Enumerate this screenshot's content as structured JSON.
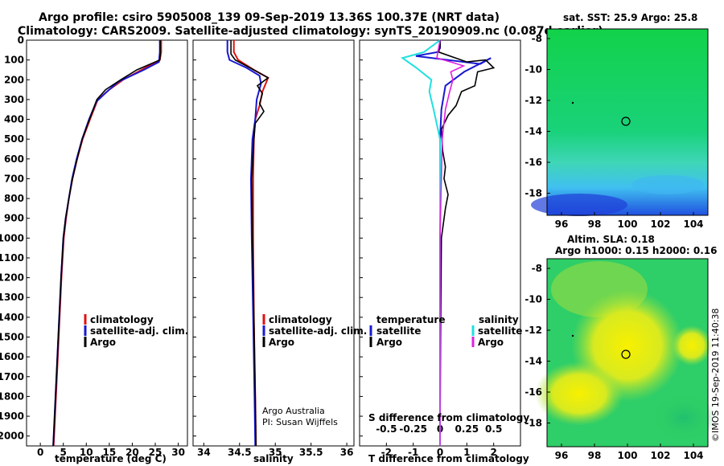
{
  "header": {
    "line1": "Argo profile: csiro 5905008_139 09-Sep-2019 13.36S 100.37E (NRT data)",
    "line2": "Climatology: CARS2009. Satellite-adjusted climatology: synTS_20190909.nc (0.087d earlier)"
  },
  "colors": {
    "climatology": "#e01010",
    "satellite": "#1818d0",
    "argo": "#000000",
    "sat_salinity": "#20e0e0",
    "argo_salinity": "#e020e0"
  },
  "chart_data": [
    {
      "type": "line",
      "name": "temperature",
      "xlabel": "temperature (deg C)",
      "xlim": [
        -3,
        32
      ],
      "ylim": [
        0,
        2050
      ],
      "xticks": [
        "0",
        "5",
        "10",
        "15",
        "20",
        "25",
        "30"
      ],
      "yticks": [
        "0",
        "100",
        "200",
        "300",
        "400",
        "500",
        "600",
        "700",
        "800",
        "900",
        "1000",
        "1100",
        "1200",
        "1300",
        "1400",
        "1500",
        "1600",
        "1700",
        "1800",
        "1900",
        "2000"
      ],
      "series": [
        {
          "name": "climatology",
          "color": "#e01010",
          "points": [
            [
              26.3,
              0
            ],
            [
              26.3,
              60
            ],
            [
              26.0,
              100
            ],
            [
              22,
              150
            ],
            [
              18,
              200
            ],
            [
              15,
              250
            ],
            [
              12.5,
              300
            ],
            [
              10.8,
              400
            ],
            [
              9.2,
              500
            ],
            [
              8.0,
              600
            ],
            [
              7.0,
              700
            ],
            [
              6.2,
              800
            ],
            [
              5.6,
              900
            ],
            [
              5.1,
              1000
            ],
            [
              4.6,
              1200
            ],
            [
              4.2,
              1400
            ],
            [
              3.8,
              1600
            ],
            [
              3.4,
              1800
            ],
            [
              3.0,
              2000
            ],
            [
              2.9,
              2050
            ]
          ]
        },
        {
          "name": "satellite-adj. clim.",
          "color": "#1818d0",
          "points": [
            [
              26.0,
              0
            ],
            [
              26.0,
              60
            ],
            [
              25.8,
              110
            ],
            [
              22.5,
              150
            ],
            [
              17,
              210
            ],
            [
              14.5,
              260
            ],
            [
              12.2,
              310
            ],
            [
              10.6,
              400
            ],
            [
              9.1,
              500
            ],
            [
              7.9,
              600
            ],
            [
              6.9,
              700
            ],
            [
              6.2,
              800
            ],
            [
              5.5,
              900
            ],
            [
              5.0,
              1000
            ],
            [
              4.5,
              1200
            ],
            [
              4.1,
              1400
            ],
            [
              3.7,
              1600
            ],
            [
              3.3,
              1800
            ],
            [
              2.9,
              2000
            ],
            [
              2.8,
              2050
            ]
          ]
        },
        {
          "name": "Argo",
          "color": "#000000",
          "points": [
            [
              26.1,
              0
            ],
            [
              26.1,
              70
            ],
            [
              26.0,
              100
            ],
            [
              21,
              150
            ],
            [
              17.5,
              200
            ],
            [
              14.2,
              250
            ],
            [
              12.3,
              300
            ],
            [
              10.7,
              400
            ],
            [
              9.1,
              500
            ],
            [
              8.0,
              600
            ],
            [
              7.0,
              700
            ],
            [
              6.2,
              800
            ],
            [
              5.5,
              900
            ],
            [
              5.0,
              1000
            ],
            [
              4.5,
              1200
            ],
            [
              4.1,
              1400
            ],
            [
              3.7,
              1600
            ],
            [
              3.3,
              1800
            ],
            [
              2.9,
              2000
            ],
            [
              2.8,
              2050
            ]
          ]
        }
      ],
      "legend": [
        "climatology",
        "satellite-adj. clim.",
        "Argo"
      ]
    },
    {
      "type": "line",
      "name": "salinity",
      "xlabel": "salinity",
      "xlim": [
        33.85,
        36.1
      ],
      "ylim": [
        0,
        2050
      ],
      "xticks": [
        "34",
        "34.5",
        "35",
        "35.5",
        "36"
      ],
      "series": [
        {
          "name": "climatology",
          "color": "#e01010",
          "points": [
            [
              34.42,
              0
            ],
            [
              34.42,
              60
            ],
            [
              34.48,
              100
            ],
            [
              34.7,
              150
            ],
            [
              34.9,
              190
            ],
            [
              34.82,
              260
            ],
            [
              34.78,
              330
            ],
            [
              34.72,
              400
            ],
            [
              34.7,
              500
            ],
            [
              34.69,
              700
            ],
            [
              34.69,
              1000
            ],
            [
              34.7,
              1400
            ],
            [
              34.72,
              1800
            ],
            [
              34.73,
              2050
            ]
          ]
        },
        {
          "name": "satellite-adj. clim.",
          "color": "#1818d0",
          "points": [
            [
              34.33,
              0
            ],
            [
              34.33,
              60
            ],
            [
              34.36,
              100
            ],
            [
              34.6,
              140
            ],
            [
              34.78,
              180
            ],
            [
              34.8,
              220
            ],
            [
              34.74,
              300
            ],
            [
              34.72,
              400
            ],
            [
              34.68,
              500
            ],
            [
              34.66,
              700
            ],
            [
              34.67,
              1000
            ],
            [
              34.69,
              1400
            ],
            [
              34.71,
              1800
            ],
            [
              34.72,
              2050
            ]
          ]
        },
        {
          "name": "Argo",
          "color": "#000000",
          "points": [
            [
              34.38,
              0
            ],
            [
              34.38,
              70
            ],
            [
              34.44,
              100
            ],
            [
              34.7,
              150
            ],
            [
              34.9,
              190
            ],
            [
              34.75,
              230
            ],
            [
              34.82,
              270
            ],
            [
              34.78,
              320
            ],
            [
              34.84,
              360
            ],
            [
              34.72,
              420
            ],
            [
              34.7,
              500
            ],
            [
              34.67,
              700
            ],
            [
              34.68,
              1000
            ],
            [
              34.7,
              1400
            ],
            [
              34.72,
              1800
            ],
            [
              34.73,
              2050
            ]
          ]
        }
      ],
      "legend": [
        "climatology",
        "satellite-adj. clim.",
        "Argo"
      ],
      "credit": [
        "Argo Australia",
        "PI: Susan Wijffels"
      ]
    },
    {
      "type": "line",
      "name": "differences",
      "xlabel": "T difference from climatology",
      "xlabel2": "S difference from climatology",
      "xlim": [
        -3,
        3
      ],
      "ylim": [
        0,
        2050
      ],
      "xticks": [
        "-2",
        "-1",
        "0",
        "1",
        "2"
      ],
      "xticks2": [
        "-0.5",
        "-0.25",
        "0",
        "0.25",
        "0.5"
      ],
      "series": [
        {
          "name": "temperature satellite",
          "color": "#1818d0",
          "points": [
            [
              0,
              0
            ],
            [
              0,
              40
            ],
            [
              -0.1,
              60
            ],
            [
              -0.9,
              80
            ],
            [
              1.5,
              120
            ],
            [
              1.9,
              90
            ],
            [
              0.9,
              160
            ],
            [
              0.2,
              230
            ],
            [
              0.05,
              350
            ],
            [
              0,
              500
            ],
            [
              0,
              1000
            ],
            [
              0,
              2050
            ]
          ]
        },
        {
          "name": "temperature Argo",
          "color": "#000000",
          "points": [
            [
              0,
              0
            ],
            [
              0,
              30
            ],
            [
              -0.05,
              60
            ],
            [
              1.0,
              110
            ],
            [
              1.7,
              100
            ],
            [
              2.0,
              140
            ],
            [
              1.4,
              160
            ],
            [
              1.3,
              230
            ],
            [
              0.8,
              260
            ],
            [
              0.6,
              330
            ],
            [
              0.3,
              380
            ],
            [
              0.05,
              450
            ],
            [
              0.1,
              560
            ],
            [
              0.2,
              640
            ],
            [
              0.15,
              700
            ],
            [
              0.3,
              780
            ],
            [
              0.2,
              850
            ],
            [
              0.05,
              1000
            ],
            [
              0.02,
              1500
            ],
            [
              0,
              2050
            ]
          ]
        },
        {
          "name": "salinity satellite",
          "color": "#20e0e0",
          "points": [
            [
              0,
              0
            ],
            [
              -0.15,
              60
            ],
            [
              -0.35,
              90
            ],
            [
              -0.22,
              140
            ],
            [
              -0.08,
              200
            ],
            [
              -0.1,
              260
            ],
            [
              -0.06,
              350
            ],
            [
              0,
              500
            ],
            [
              0,
              1000
            ],
            [
              0,
              2050
            ]
          ]
        },
        {
          "name": "salinity Argo",
          "color": "#e020e0",
          "points": [
            [
              0,
              0
            ],
            [
              -0.02,
              60
            ],
            [
              -0.03,
              90
            ],
            [
              0.1,
              110
            ],
            [
              0.22,
              130
            ],
            [
              0.1,
              160
            ],
            [
              0.12,
              200
            ],
            [
              0.09,
              260
            ],
            [
              0.05,
              350
            ],
            [
              0.02,
              500
            ],
            [
              0,
              1000
            ],
            [
              0,
              2050
            ]
          ]
        }
      ],
      "legend_headers": [
        "temperature",
        "salinity"
      ],
      "legend_left": [
        "satellite",
        "Argo"
      ],
      "legend_right": [
        "satellite",
        "Argo"
      ]
    },
    {
      "type": "heatmap",
      "name": "sst_map",
      "title": "sat. SST: 25.9 Argo: 25.8",
      "xticks": [
        "96",
        "98",
        "100",
        "102",
        "104"
      ],
      "yticks": [
        "-8",
        "-10",
        "-12",
        "-14",
        "-16",
        "-18"
      ],
      "marker": [
        100.37,
        -13.36
      ]
    },
    {
      "type": "heatmap",
      "name": "sla_map",
      "title1": "Altim. SLA: 0.18",
      "title2": "Argo h1000: 0.15 h2000: 0.16",
      "xticks": [
        "96",
        "98",
        "100",
        "102",
        "104"
      ],
      "yticks": [
        "-8",
        "-10",
        "-12",
        "-14",
        "-16",
        "-18"
      ],
      "marker": [
        100.37,
        -13.36
      ]
    }
  ],
  "watermark": "©IMOS 19-Sep-2019 11:40:38"
}
